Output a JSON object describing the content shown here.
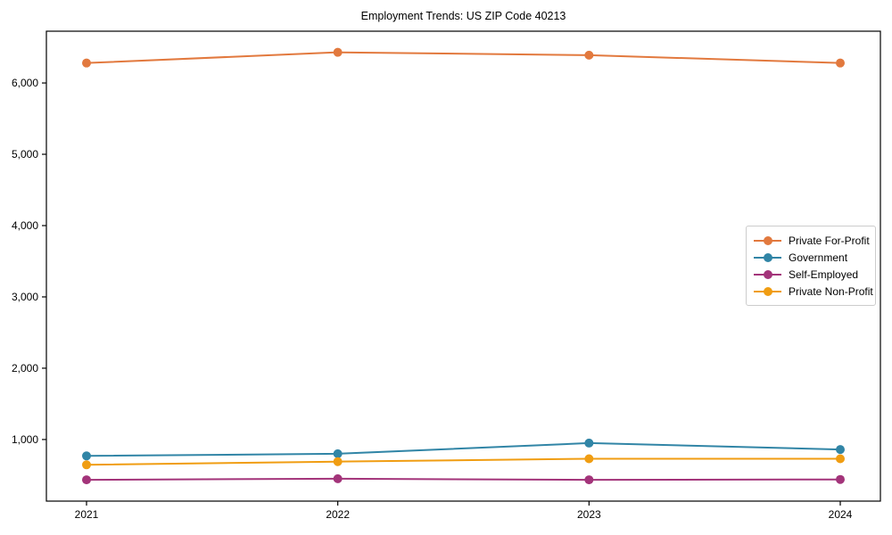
{
  "chart_data": {
    "type": "line",
    "title": "Employment Trends: US ZIP Code 40213",
    "categories": [
      "2021",
      "2022",
      "2023",
      "2024"
    ],
    "series": [
      {
        "name": "Private For-Profit",
        "color": "#E2793E",
        "values": [
          6280,
          6430,
          6390,
          6280
        ]
      },
      {
        "name": "Government",
        "color": "#3185A6",
        "values": [
          770,
          800,
          950,
          860
        ]
      },
      {
        "name": "Self-Employed",
        "color": "#A3347A",
        "values": [
          435,
          450,
          435,
          440
        ]
      },
      {
        "name": "Private Non-Profit",
        "color": "#F09D12",
        "values": [
          645,
          690,
          730,
          730
        ]
      }
    ],
    "xlabel": "",
    "ylabel": "",
    "ylim": [
      136,
      6726
    ],
    "yticks": [
      1000,
      2000,
      3000,
      4000,
      5000,
      6000
    ],
    "ytick_labels": [
      "1,000",
      "2,000",
      "3,000",
      "4,000",
      "5,000",
      "6,000"
    ],
    "grid": false,
    "legend_position": "center-right",
    "marker": "circle",
    "axis_color": "#000000",
    "tick_font_size": 12
  }
}
